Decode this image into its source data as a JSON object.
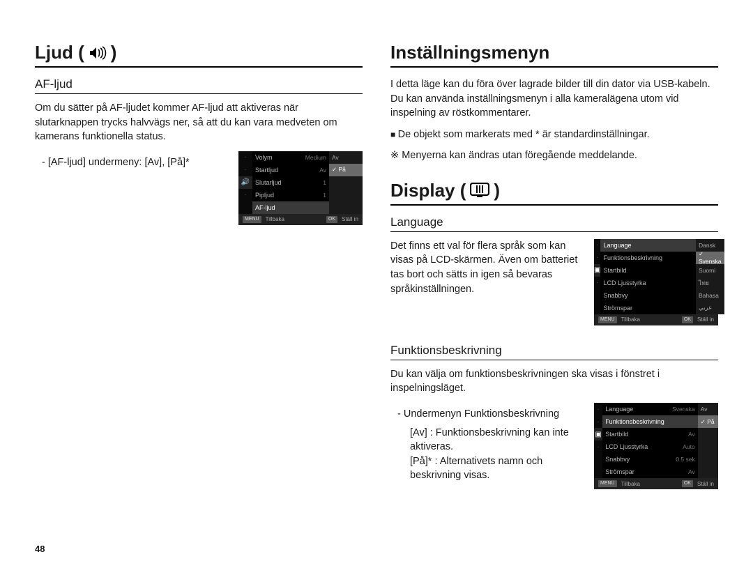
{
  "page_number": "48",
  "colors": {
    "text": "#1a1a1a",
    "rule": "#000000",
    "cam_bg": "#000000",
    "cam_sel": "#3a3a3a",
    "cam_pop_sel": "#6a6a6a"
  },
  "left": {
    "heading": "Ljud (",
    "heading_close": ")",
    "sub_heading": "AF-ljud",
    "para": "Om du sätter på AF-ljudet kommer AF-ljud att aktiveras när slutarknappen trycks halvvägs ner, så att du kan vara medveten om kamerans funktionella status.",
    "submenu_line": "- [AF-ljud] undermeny: [Av], [På]*",
    "cam": {
      "rows": [
        {
          "l": "Volym",
          "r": "Medium"
        },
        {
          "l": "Startljud",
          "r": "Av"
        },
        {
          "l": "Slutarljud",
          "r": "1"
        },
        {
          "l": "Pipljud",
          "r": "1"
        },
        {
          "l": "AF-ljud",
          "r": ""
        }
      ],
      "sel_index": 4,
      "popup": [
        {
          "t": "Av",
          "sel": false
        },
        {
          "t": "✓ På",
          "sel": true
        }
      ],
      "foot_back": "Tillbaka",
      "foot_set": "Ställ in",
      "foot_btn1": "MENU",
      "foot_btn2": "OK"
    }
  },
  "right": {
    "h1": "Inställningsmenyn",
    "p1": "I detta läge kan du föra över lagrade bilder till din dator via USB-kabeln. Du kan använda inställningsmenyn i alla kameralägena utom vid inspelning av röstkommentarer.",
    "b1": "De objekt som markerats med * är standardinställningar.",
    "b2": "Menyerna kan ändras utan föregående meddelande.",
    "h2": "Display (",
    "h2_close": ")",
    "lang_h": "Language",
    "lang_p": "Det finns ett val för flera språk som kan visas på LCD-skärmen. Även om batteriet tas bort och sätts in igen så bevaras språkinställningen.",
    "lang_cam": {
      "rows": [
        {
          "l": "Language",
          "r": ""
        },
        {
          "l": "Funktionsbeskrivning",
          "r": ""
        },
        {
          "l": "Startbild",
          "r": ""
        },
        {
          "l": "LCD Ljusstyrka",
          "r": ""
        },
        {
          "l": "Snabbvy",
          "r": ""
        },
        {
          "l": "Strömspar",
          "r": ""
        }
      ],
      "sel_index": 0,
      "popup": [
        {
          "t": "Dansk",
          "sel": false
        },
        {
          "t": "✓ Svenska",
          "sel": true
        },
        {
          "t": "Suomi",
          "sel": false
        },
        {
          "t": "ไทย",
          "sel": false
        },
        {
          "t": "Bahasa",
          "sel": false
        },
        {
          "t": "عربي",
          "sel": false
        }
      ],
      "foot_back": "Tillbaka",
      "foot_set": "Ställ in",
      "foot_btn1": "MENU",
      "foot_btn2": "OK"
    },
    "func_h": "Funktionsbeskrivning",
    "func_p": "Du kan välja om funktionsbeskrivningen ska visas i fönstret i inspelningsläget.",
    "func_sub1": "- Undermenyn Funktionsbeskrivning",
    "func_sub_av_k": "[Av]",
    "func_sub_av_v": ": Funktionsbeskrivning kan inte aktiveras.",
    "func_sub_pa_k": "[På]*",
    "func_sub_pa_v": ": Alternativets namn och beskrivning visas.",
    "func_cam": {
      "rows": [
        {
          "l": "Language",
          "r": "Svenska"
        },
        {
          "l": "Funktionsbeskrivning",
          "r": ""
        },
        {
          "l": "Startbild",
          "r": "Av"
        },
        {
          "l": "LCD Ljusstyrka",
          "r": "Auto"
        },
        {
          "l": "Snabbvy",
          "r": "0.5 sek"
        },
        {
          "l": "Strömspar",
          "r": "Av"
        }
      ],
      "sel_index": 1,
      "popup": [
        {
          "t": "Av",
          "sel": false
        },
        {
          "t": "✓ På",
          "sel": true
        }
      ],
      "foot_back": "Tillbaka",
      "foot_set": "Ställ in",
      "foot_btn1": "MENU",
      "foot_btn2": "OK"
    }
  }
}
